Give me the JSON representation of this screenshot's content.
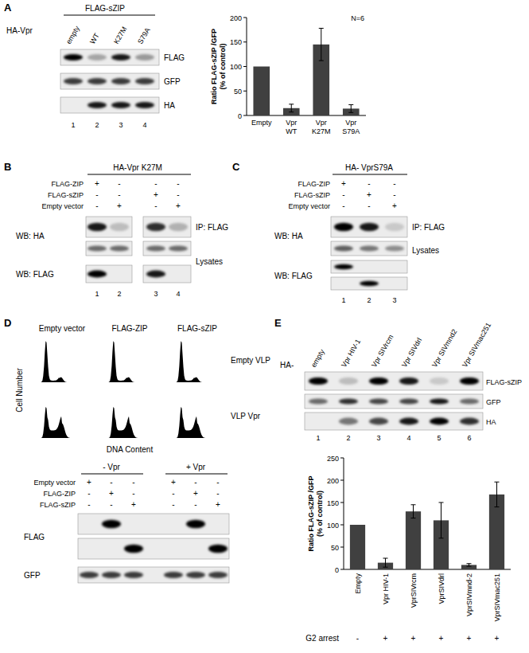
{
  "chart_data": [
    {
      "type": "bar",
      "categories": [
        "Empty",
        "Vpr WT",
        "Vpr K27M",
        "Vpr S79A"
      ],
      "values": [
        100,
        15,
        145,
        14
      ],
      "errors": [
        null,
        8,
        33,
        8
      ],
      "color": "#404040",
      "ylim": [
        0,
        200
      ],
      "yticks": [
        0,
        50,
        100,
        150,
        200
      ],
      "ylabel": "Ratio FLAG-sZIP /GFP (% of control)",
      "annotations": [
        "N=6"
      ]
    },
    {
      "type": "bar",
      "categories": [
        "Empty",
        "Vpr HIV-1",
        "VprSIVrcm",
        "VprSIVdrl",
        "VprSIVmnd-2",
        "VprSIVmac251"
      ],
      "values": [
        100,
        15,
        130,
        110,
        10,
        168
      ],
      "errors": [
        null,
        10,
        15,
        40,
        3,
        28
      ],
      "color": "#404040",
      "ylim": [
        0,
        250
      ],
      "yticks": [
        0,
        50,
        100,
        150,
        200,
        250
      ],
      "ylabel": "Ratio FLAG-sZIP /GFP (% of control)"
    }
  ],
  "panels": {
    "A": {
      "label": "A",
      "header": "FLAG-sZIP",
      "row_label": "HA-Vpr",
      "lanes": [
        "empty",
        "WT",
        "K27M",
        "S79A"
      ],
      "blots": [
        "FLAG",
        "GFP",
        "HA"
      ],
      "lane_numbers": [
        "1",
        "2",
        "3",
        "4"
      ]
    },
    "B": {
      "label": "B",
      "header": "HA-Vpr K27M",
      "conditions": [
        {
          "name": "FLAG-ZIP",
          "signs": [
            "+",
            "-",
            "-",
            "-"
          ]
        },
        {
          "name": "FLAG-sZIP",
          "signs": [
            "-",
            "-",
            "+",
            "-"
          ]
        },
        {
          "name": "Empty vector",
          "signs": [
            "-",
            "+",
            "-",
            "+"
          ]
        }
      ],
      "blot_labels": [
        "WB: HA",
        "WB: FLAG"
      ],
      "side_labels": [
        "IP: FLAG",
        "Lysates"
      ],
      "lane_numbers": [
        "1",
        "2",
        "3",
        "4"
      ]
    },
    "C": {
      "label": "C",
      "header": "HA- VprS79A",
      "conditions": [
        {
          "name": "FLAG-ZIP",
          "signs": [
            "+",
            "-",
            "-"
          ]
        },
        {
          "name": "FLAG-sZIP",
          "signs": [
            "-",
            "+",
            "-"
          ]
        },
        {
          "name": "Empty vector",
          "signs": [
            "-",
            "-",
            "+"
          ]
        }
      ],
      "blot_labels": [
        "WB: HA",
        "WB: FLAG"
      ],
      "side_labels": [
        "IP: FLAG",
        "Lysates"
      ],
      "lane_numbers": [
        "1",
        "2",
        "3"
      ]
    },
    "D": {
      "label": "D",
      "columns": [
        "Empty vector",
        "FLAG-ZIP",
        "FLAG-sZIP"
      ],
      "rows": [
        "Empty VLP",
        "VLP Vpr"
      ],
      "ylabel": "Cell Number",
      "xlabel": "DNA Content",
      "groups": [
        "- Vpr",
        "+ Vpr"
      ],
      "conditions": [
        {
          "name": "Empty vector",
          "signs": [
            "+",
            "-",
            "-",
            "+",
            "-",
            "-"
          ]
        },
        {
          "name": "FLAG-ZIP",
          "signs": [
            "-",
            "+",
            "-",
            "-",
            "+",
            "-"
          ]
        },
        {
          "name": "FLAG-sZIP",
          "signs": [
            "-",
            "-",
            "+",
            "-",
            "-",
            "+"
          ]
        }
      ],
      "blots": [
        "FLAG",
        "GFP"
      ]
    },
    "E": {
      "label": "E",
      "row_label": "HA-",
      "lanes": [
        "empty",
        "Vpr HIV-1",
        "Vpr SIVrcm",
        "Vpr SIVdrl",
        "Vpr SIVmnd2",
        "Vpr SIVmac251"
      ],
      "blots": [
        "FLAG-sZIP",
        "GFP",
        "HA"
      ],
      "lane_numbers": [
        "1",
        "2",
        "3",
        "4",
        "5",
        "6"
      ],
      "g2": {
        "label": "G2 arrest",
        "values": [
          "-",
          "+",
          "+",
          "+",
          "+",
          "+"
        ]
      }
    }
  }
}
